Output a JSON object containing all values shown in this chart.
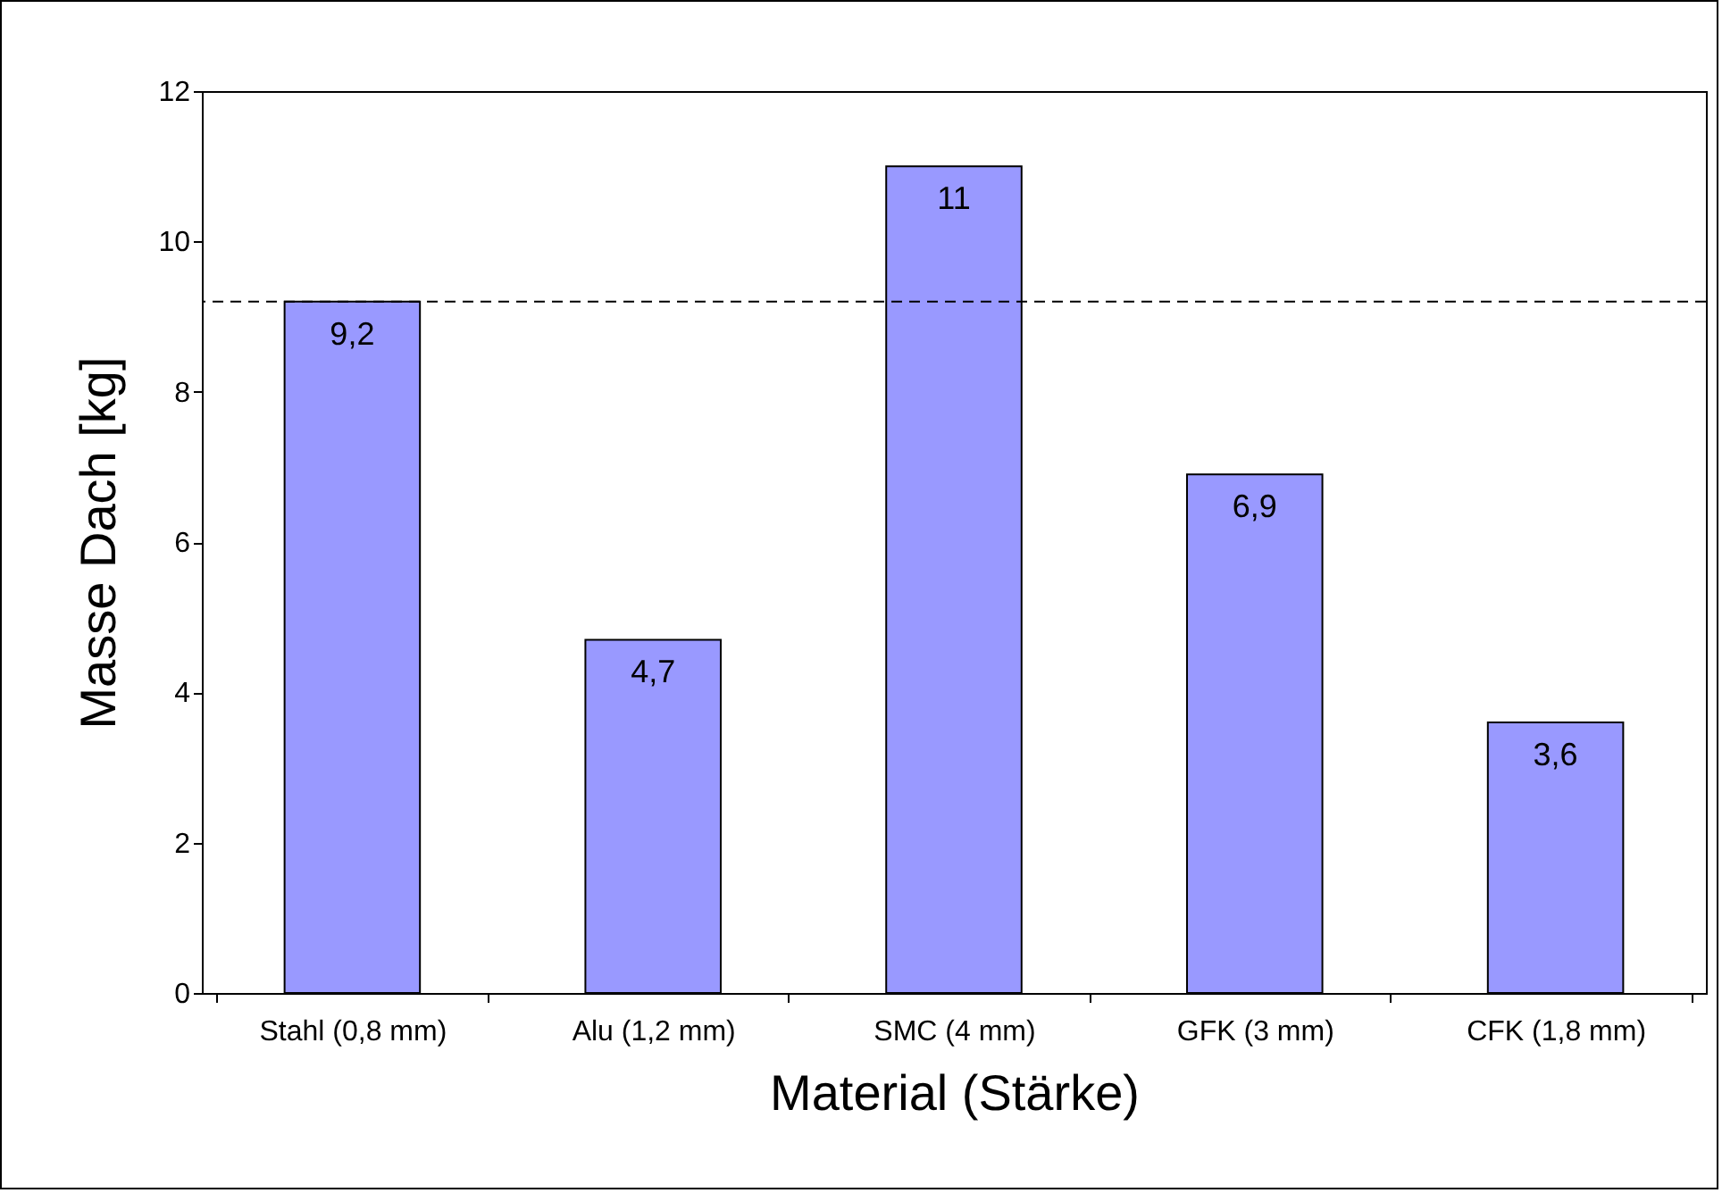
{
  "chart_data": {
    "type": "bar",
    "xlabel": "Material (Stärke)",
    "ylabel": "Masse Dach  [kg]",
    "categories": [
      "Stahl (0,8 mm)",
      "Alu (1,2 mm)",
      "SMC (4 mm)",
      "GFK (3 mm)",
      "CFK (1,8 mm)"
    ],
    "values": [
      9.2,
      4.7,
      11,
      6.9,
      3.6
    ],
    "value_labels": [
      "9,2",
      "4,7",
      "11",
      "6,9",
      "3,6"
    ],
    "color": "#9999ff",
    "ylim": [
      0,
      12
    ],
    "yticks": [
      0,
      2,
      4,
      6,
      8,
      10,
      12
    ],
    "ref_lines": [
      {
        "axis": "y",
        "value": 9.2,
        "line_style": "dashed",
        "color": "#000000"
      }
    ]
  }
}
